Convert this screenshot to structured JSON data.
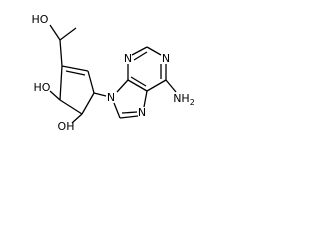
{
  "atoms": {
    "hydroxyl_top": "HO",
    "hydroxyl_left": "HO",
    "hydroxyl_bottom": "OH",
    "n1": "N",
    "n3": "N",
    "n7": "N",
    "n9": "N",
    "amine": {
      "text": "NH",
      "subscript": "2"
    }
  }
}
